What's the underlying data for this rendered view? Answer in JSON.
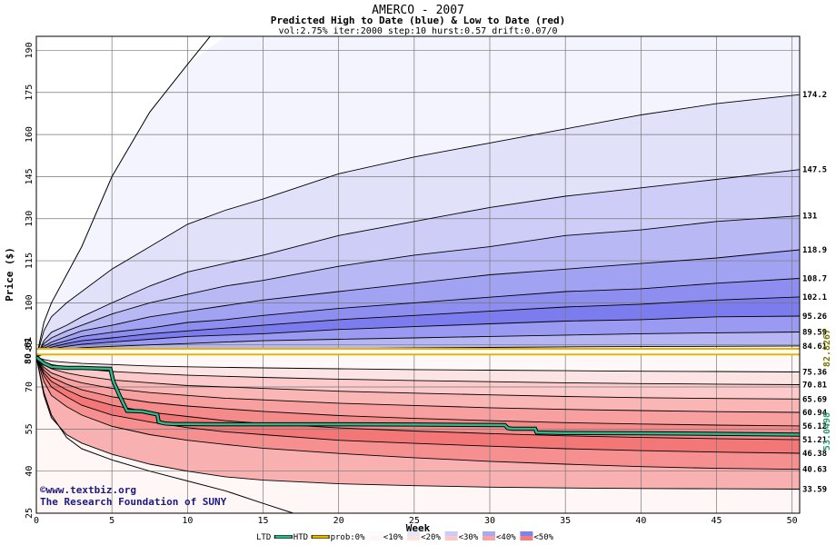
{
  "chart_data": {
    "type": "area",
    "title": "AMERCO - 2007",
    "subtitle": "Predicted High to Date (blue) &  Low to Date (red)",
    "params": "vol:2.75% iter:2000 step:10 hurst:0.57 drift:0.07/0",
    "xlabel": "Week",
    "ylabel": "Price ($)",
    "xlim": [
      0,
      50.5
    ],
    "ylim": [
      25,
      195
    ],
    "x_ticks": [
      0,
      5,
      10,
      15,
      20,
      25,
      30,
      35,
      40,
      45,
      50
    ],
    "y_ticks": [
      25,
      40,
      55,
      70,
      85,
      100,
      115,
      130,
      145,
      160,
      175,
      190
    ],
    "grid": true,
    "start_value": 80.61,
    "start_label": "80.61",
    "x": [
      0,
      0.5,
      1,
      2,
      3,
      5,
      7.5,
      10,
      12.5,
      15,
      20,
      25,
      30,
      35,
      40,
      45,
      50
    ],
    "high_bands": [
      {
        "end_label": "174.2",
        "values": [
          80.61,
          90,
          95,
          100,
          104,
          112,
          120,
          128,
          133,
          137,
          146,
          152,
          157,
          162,
          167,
          171,
          174.2
        ]
      },
      {
        "end_label": "147.5",
        "values": [
          80.61,
          86.5,
          89.5,
          92,
          95,
          100,
          106,
          111,
          114,
          117,
          124,
          129,
          134,
          138,
          141,
          144,
          147.5
        ]
      },
      {
        "end_label": "131",
        "values": [
          80.61,
          85.5,
          87.5,
          90,
          92,
          96,
          100,
          103,
          106,
          108,
          113,
          117,
          120,
          124,
          126,
          129,
          131
        ]
      },
      {
        "end_label": "118.9",
        "values": [
          80.61,
          84.5,
          86,
          88,
          90,
          92,
          95,
          97,
          99,
          101,
          104,
          107,
          110,
          112,
          114,
          116,
          118.9
        ]
      },
      {
        "end_label": "108.7",
        "values": [
          80.61,
          83.8,
          85,
          86.5,
          88,
          89.5,
          91,
          93,
          94,
          95.5,
          98,
          100,
          102,
          104,
          105,
          107,
          108.7
        ]
      },
      {
        "end_label": "102.1",
        "values": [
          80.61,
          83.2,
          84.2,
          85.5,
          86.5,
          87.5,
          89,
          90,
          91,
          92,
          94,
          95.5,
          97,
          98.5,
          99.5,
          101,
          102.1
        ]
      },
      {
        "end_label": "95.26",
        "values": [
          80.61,
          82.7,
          83.5,
          84.5,
          85.2,
          86,
          87,
          88,
          88.5,
          89,
          90.5,
          91.5,
          92.5,
          93.5,
          94,
          95,
          95.26
        ]
      },
      {
        "end_label": "89.59",
        "values": [
          80.61,
          82.2,
          82.8,
          83.5,
          84,
          84.5,
          85,
          85.5,
          86,
          86.5,
          87,
          87.5,
          88,
          88.5,
          89,
          89.3,
          89.59
        ]
      },
      {
        "end_label": "84.61",
        "values": [
          80.61,
          81.8,
          82,
          82.4,
          82.6,
          82.8,
          83,
          83.2,
          83.4,
          83.5,
          83.7,
          83.9,
          84.1,
          84.3,
          84.4,
          84.5,
          84.61
        ]
      }
    ],
    "low_bands": [
      {
        "end_label": "75.36",
        "values": [
          80.61,
          79.8,
          79.2,
          78.8,
          78.4,
          78,
          77.5,
          77.2,
          77,
          76.8,
          76.5,
          76.2,
          76,
          75.8,
          75.6,
          75.5,
          75.36
        ]
      },
      {
        "end_label": "70.81",
        "values": [
          80.61,
          79,
          78,
          77,
          76.5,
          75.5,
          74.8,
          74.2,
          73.8,
          73.4,
          72.8,
          72.3,
          71.9,
          71.5,
          71.2,
          71,
          70.81
        ]
      },
      {
        "end_label": "65.69",
        "values": [
          80.61,
          78,
          76.5,
          75,
          74,
          72.5,
          71.5,
          70.5,
          70,
          69.5,
          68.5,
          67.8,
          67.2,
          66.6,
          66.2,
          65.9,
          65.69
        ]
      },
      {
        "end_label": "60.94",
        "values": [
          80.61,
          77,
          75,
          73,
          71.5,
          69.5,
          68,
          67,
          66,
          65.4,
          64.2,
          63.4,
          62.6,
          62,
          61.6,
          61.2,
          60.94
        ]
      },
      {
        "end_label": "56.12",
        "values": [
          80.61,
          76,
          73.5,
          71,
          69,
          66.5,
          64.5,
          63.2,
          62.2,
          61.3,
          59.8,
          58.8,
          58,
          57.3,
          56.8,
          56.4,
          56.12
        ]
      },
      {
        "end_label": "51.21",
        "values": [
          80.61,
          75,
          72,
          69,
          66.5,
          63.5,
          61,
          59.5,
          58,
          57,
          55.4,
          54.3,
          53.4,
          52.6,
          52,
          51.6,
          51.21
        ]
      },
      {
        "end_label": "46.38",
        "values": [
          80.61,
          74,
          70,
          66.5,
          63.5,
          60,
          57.5,
          55.5,
          54,
          53,
          51,
          49.9,
          48.9,
          48,
          47.3,
          46.8,
          46.38
        ]
      },
      {
        "end_label": "40.63",
        "values": [
          80.61,
          72,
          67,
          63,
          60,
          56,
          53,
          51,
          49.5,
          48.2,
          46.3,
          44.8,
          43.5,
          42.5,
          41.6,
          41,
          40.63
        ]
      },
      {
        "end_label": "33.59",
        "values": [
          80.61,
          67,
          59,
          53,
          50,
          46,
          42.5,
          40,
          38,
          36.8,
          35.5,
          34.8,
          34.3,
          34,
          33.8,
          33.7,
          33.59
        ]
      }
    ],
    "outer_high": {
      "x": [
        0,
        0.5,
        1,
        2,
        3,
        5,
        7.5,
        10,
        11.5,
        12,
        50.5
      ],
      "values": [
        80.61,
        93,
        100,
        110,
        120,
        145,
        168,
        185,
        195,
        195,
        195
      ]
    },
    "outer_low": {
      "x": [
        0,
        0.5,
        1,
        2,
        3,
        5,
        7.5,
        10,
        12.5,
        15,
        17
      ],
      "values": [
        80.61,
        68,
        60,
        52,
        48,
        44,
        40,
        36.5,
        33,
        28.5,
        25
      ]
    },
    "current_range": {
      "low": 81.6,
      "high": 83.6,
      "label": "82.8267",
      "color": "#e8b400"
    },
    "ltd_line": {
      "x": [
        0,
        0.5,
        1,
        1.5,
        2,
        3,
        4,
        4.9,
        5.1,
        5.5,
        6,
        7,
        8,
        8.1,
        8.5,
        9,
        12,
        15,
        20,
        25,
        31,
        31.2,
        31.5,
        33,
        33.1,
        35,
        40,
        45,
        50.5
      ],
      "values": [
        80.61,
        78.5,
        77.2,
        77,
        76.8,
        76.8,
        76.6,
        76.5,
        72,
        67,
        61.5,
        61.3,
        60.2,
        57.5,
        57,
        56.8,
        56.7,
        56.7,
        56.7,
        56.6,
        56.4,
        55.3,
        55.1,
        55.1,
        53.8,
        53.6,
        53.5,
        53.3,
        53.0
      ],
      "end_label": "53.0498",
      "color": "#2db88c"
    },
    "credit_line1": "©www.textbiz.org",
    "credit_line2": "The Research Foundation of SUNY",
    "legend": [
      {
        "label": "LTD",
        "kind": "none",
        "color": ""
      },
      {
        "label": "HTD",
        "kind": "line",
        "color": "#2db88c"
      },
      {
        "label": "prob:0%",
        "kind": "line",
        "color": "#e8b400"
      },
      {
        "label": "<10%",
        "kind": "split",
        "color": "#fcfcff",
        "color2": "#fff5f5"
      },
      {
        "label": "<20%",
        "kind": "split",
        "color": "#e6e6fb",
        "color2": "#fde2e2"
      },
      {
        "label": "<30%",
        "kind": "split",
        "color": "#cbcbf6",
        "color2": "#fcc7c7"
      },
      {
        "label": "<40%",
        "kind": "split",
        "color": "#a9a9f2",
        "color2": "#f8a4a4"
      },
      {
        "label": "<50%",
        "kind": "split",
        "color": "#8080ef",
        "color2": "#f37d7d"
      }
    ],
    "colors": {
      "high_fills": [
        "#f4f4fe",
        "#e1e1fa",
        "#cdcdf7",
        "#b8b8f5",
        "#a2a2f3",
        "#8e8ef1",
        "#7c7cee",
        "#9a9af2",
        "#b6b6f4",
        "#d3d3f9"
      ],
      "low_fills": [
        "#fde4e4",
        "#fccaca",
        "#fab5b5",
        "#f8a0a0",
        "#f58a8a",
        "#f47777",
        "#f69090",
        "#f9b0b0",
        "#fcd3d3",
        "#feeeee"
      ],
      "outer_fill_high": "#fafaff",
      "outer_fill_low": "#fff6f6",
      "gold": "#e8b400",
      "label_olive": "#777700"
    }
  }
}
